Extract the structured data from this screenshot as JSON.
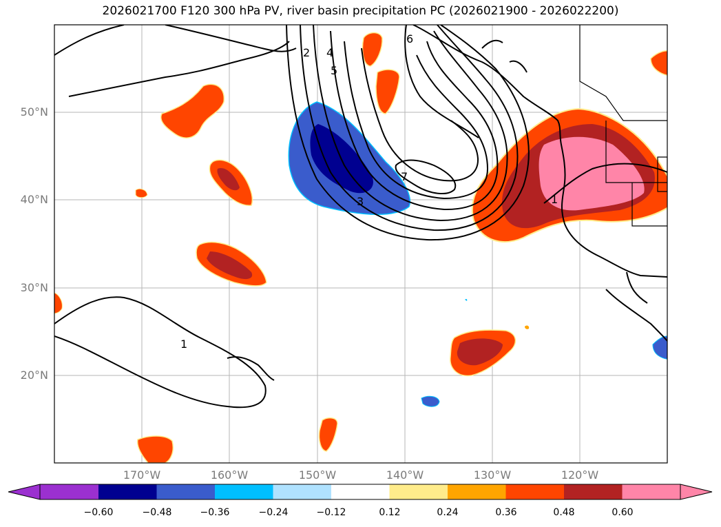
{
  "title": "2026021700 F120 300 hPa PV, river basin precipitation PC (2026021900 - 2026022200)",
  "lat_labels": [
    "50°N",
    "40°N",
    "30°N",
    "20°N"
  ],
  "lon_labels": [
    "170°W",
    "160°W",
    "150°W",
    "140°W",
    "130°W",
    "120°W"
  ],
  "pv_contour_labels": [
    "1",
    "2",
    "3",
    "4",
    "5",
    "6",
    "7",
    "1"
  ],
  "colorbar": {
    "tick_labels": [
      "−0.60",
      "−0.48",
      "−0.36",
      "−0.24",
      "−0.12",
      "0.12",
      "0.24",
      "0.36",
      "0.48",
      "0.60"
    ],
    "colors": [
      "#9b30d0",
      "#000090",
      "#3a5ccc",
      "#00bfff",
      "#b0e2ff",
      "#ffffff",
      "#ffec8b",
      "#ffa500",
      "#ff4500",
      "#b22222",
      "#ff85a8"
    ]
  }
}
